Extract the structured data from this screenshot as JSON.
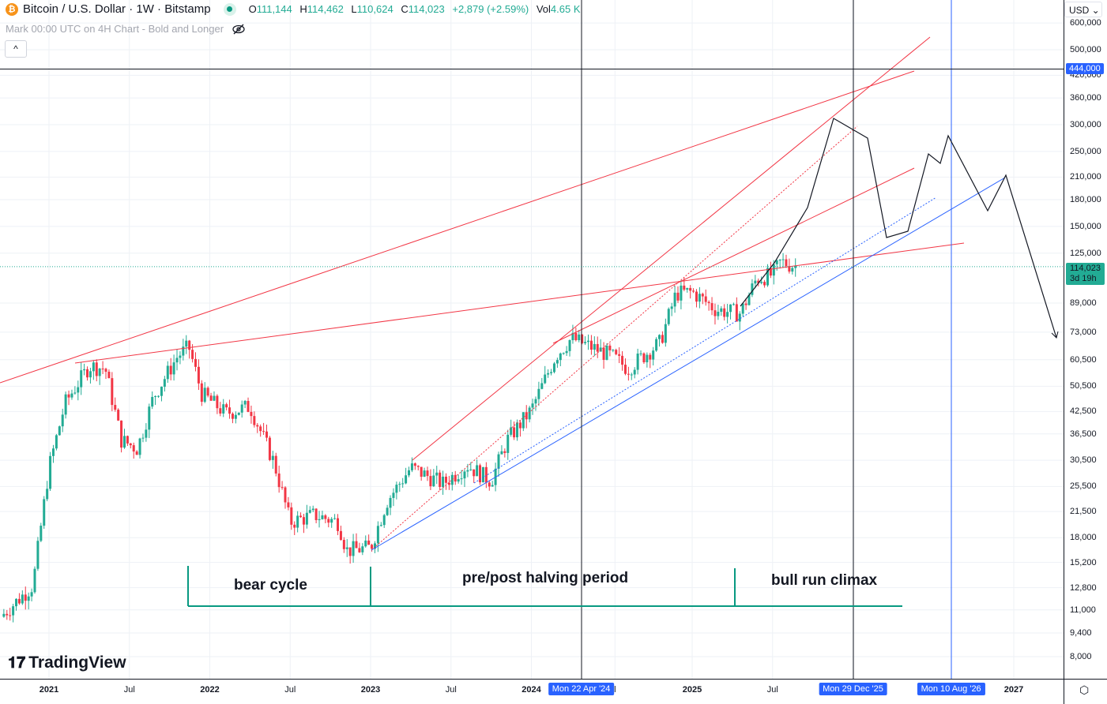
{
  "header": {
    "symbol": "Bitcoin / U.S. Dollar · 1W · Bitstamp",
    "coin_glyph": "₿",
    "open_label": "O",
    "open": "111,144",
    "high_label": "H",
    "high": "114,462",
    "low_label": "L",
    "low": "110,624",
    "close_label": "C",
    "close": "114,023",
    "change": "+2,879 (+2.59%)",
    "vol_label": "Vol",
    "vol": "4.65 K"
  },
  "indicator": {
    "label": "Mark 00:00 UTC on 4H Chart - Bold and Longer",
    "hide_icon": "eye-off-icon"
  },
  "collapse_glyph": "^",
  "currency": "USD ⌄",
  "price_axis": [
    "600,000",
    "500,000",
    "420,000",
    "360,000",
    "300,000",
    "250,000",
    "210,000",
    "180,000",
    "150,000",
    "125,000",
    "89,000",
    "73,000",
    "60,500",
    "50,500",
    "42,500",
    "36,500",
    "30,500",
    "25,500",
    "21,500",
    "18,000",
    "15,200",
    "12,800",
    "11,000",
    "9,400",
    "8,000"
  ],
  "price_axis_values": [
    600000,
    500000,
    420000,
    360000,
    300000,
    250000,
    210000,
    180000,
    150000,
    125000,
    89000,
    73000,
    60500,
    50500,
    42500,
    36500,
    30500,
    25500,
    21500,
    18000,
    15200,
    12800,
    11000,
    9400,
    8000
  ],
  "crosshair_price": {
    "label": "444,000",
    "value": 444000
  },
  "last_price": {
    "label": "114,023",
    "countdown": "3d 19h",
    "value": 114023
  },
  "time_axis": [
    {
      "label": "2021",
      "t": 2021.0
    },
    {
      "label": "Jul",
      "t": 2021.5
    },
    {
      "label": "2022",
      "t": 2022.0
    },
    {
      "label": "Jul",
      "t": 2022.5
    },
    {
      "label": "2023",
      "t": 2023.0
    },
    {
      "label": "Jul",
      "t": 2023.5
    },
    {
      "label": "2024",
      "t": 2024.0
    },
    {
      "label": "l",
      "t": 2024.52
    },
    {
      "label": "2025",
      "t": 2025.0
    },
    {
      "label": "Jul",
      "t": 2025.5
    },
    {
      "label": "2027",
      "t": 2027.0
    }
  ],
  "time_badges": [
    {
      "label": "Mon 22 Apr '24",
      "t": 2024.31
    },
    {
      "label": "Mon 29 Dec '25",
      "t": 2026.0
    },
    {
      "label": "Mon 10 Aug '26",
      "t": 2026.61
    }
  ],
  "annotations": {
    "bear": "bear cycle",
    "halving": "pre/post halving period",
    "climax": "bull run climax"
  },
  "logo": "TradingView",
  "colors": {
    "up": "#22ab94",
    "down": "#f23645",
    "trend_red": "#f23645",
    "trend_blue": "#2962ff",
    "bracket": "#089981"
  },
  "chart_data": {
    "type": "candlestick",
    "scale": "log",
    "price_path": [
      [
        2020.7,
        10500
      ],
      [
        2020.9,
        13000
      ],
      [
        2021.0,
        29000
      ],
      [
        2021.1,
        45000
      ],
      [
        2021.25,
        58000
      ],
      [
        2021.35,
        57000
      ],
      [
        2021.45,
        35000
      ],
      [
        2021.55,
        33000
      ],
      [
        2021.65,
        47000
      ],
      [
        2021.8,
        62000
      ],
      [
        2021.87,
        66000
      ],
      [
        2021.95,
        48000
      ],
      [
        2022.1,
        42000
      ],
      [
        2022.25,
        44000
      ],
      [
        2022.4,
        30000
      ],
      [
        2022.5,
        20000
      ],
      [
        2022.65,
        21000
      ],
      [
        2022.8,
        20000
      ],
      [
        2022.85,
        16500
      ],
      [
        2023.0,
        16800
      ],
      [
        2023.1,
        23000
      ],
      [
        2023.25,
        29000
      ],
      [
        2023.45,
        26000
      ],
      [
        2023.6,
        29500
      ],
      [
        2023.75,
        26500
      ],
      [
        2023.85,
        35000
      ],
      [
        2024.0,
        43000
      ],
      [
        2024.15,
        62000
      ],
      [
        2024.25,
        70000
      ],
      [
        2024.5,
        62000
      ],
      [
        2024.6,
        57000
      ],
      [
        2024.8,
        68000
      ],
      [
        2024.9,
        95000
      ],
      [
        2025.0,
        96000
      ],
      [
        2025.15,
        85000
      ],
      [
        2025.3,
        83000
      ],
      [
        2025.4,
        105000
      ],
      [
        2025.5,
        108000
      ],
      [
        2025.55,
        118000
      ],
      [
        2025.65,
        114000
      ]
    ]
  }
}
